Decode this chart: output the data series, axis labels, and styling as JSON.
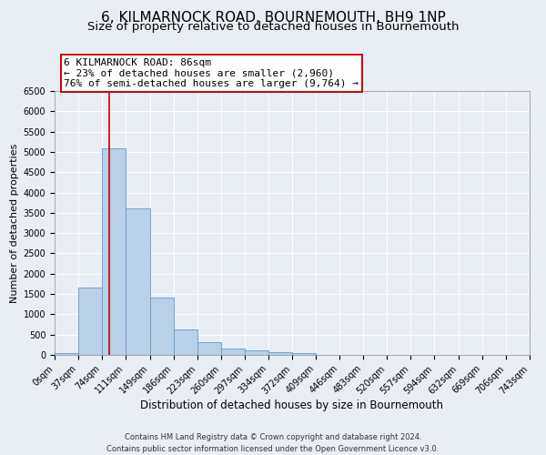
{
  "title": "6, KILMARNOCK ROAD, BOURNEMOUTH, BH9 1NP",
  "subtitle": "Size of property relative to detached houses in Bournemouth",
  "xlabel": "Distribution of detached houses by size in Bournemouth",
  "ylabel": "Number of detached properties",
  "bin_edges": [
    0,
    37,
    74,
    111,
    149,
    186,
    223,
    260,
    297,
    334,
    372,
    409,
    446,
    483,
    520,
    557,
    594,
    632,
    669,
    706,
    743
  ],
  "bar_heights": [
    50,
    1650,
    5080,
    3600,
    1420,
    620,
    310,
    155,
    110,
    60,
    50,
    0,
    0,
    0,
    0,
    0,
    0,
    0,
    0,
    0
  ],
  "bar_color": "#b8d0e8",
  "bar_edge_color": "#6699cc",
  "vline_x": 86,
  "vline_color": "#cc0000",
  "ylim": [
    0,
    6500
  ],
  "yticks": [
    0,
    500,
    1000,
    1500,
    2000,
    2500,
    3000,
    3500,
    4000,
    4500,
    5000,
    5500,
    6000,
    6500
  ],
  "annotation_title": "6 KILMARNOCK ROAD: 86sqm",
  "annotation_line1": "← 23% of detached houses are smaller (2,960)",
  "annotation_line2": "76% of semi-detached houses are larger (9,764) →",
  "annotation_box_facecolor": "#ffffff",
  "annotation_box_edgecolor": "#cc0000",
  "footer_line1": "Contains HM Land Registry data © Crown copyright and database right 2024.",
  "footer_line2": "Contains public sector information licensed under the Open Government Licence v3.0.",
  "background_color": "#e8eef4",
  "plot_background_color": "#e8eef4",
  "grid_color": "#ffffff",
  "title_fontsize": 11,
  "subtitle_fontsize": 9.5,
  "xlabel_fontsize": 8.5,
  "ylabel_fontsize": 8,
  "tick_fontsize": 7,
  "annotation_fontsize": 8,
  "footer_fontsize": 6
}
